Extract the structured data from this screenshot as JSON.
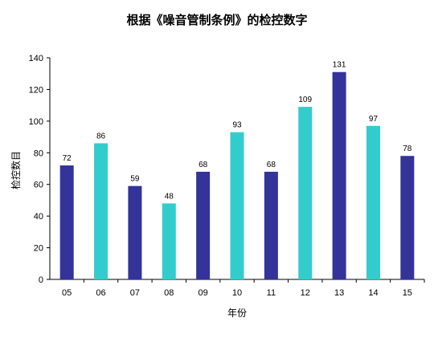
{
  "chart_data": {
    "type": "bar",
    "title": "根据《噪音管制条例》的检控数字",
    "xlabel": "年份",
    "ylabel": "检控数目",
    "categories": [
      "05",
      "06",
      "07",
      "08",
      "09",
      "10",
      "11",
      "12",
      "13",
      "14",
      "15"
    ],
    "values": [
      72,
      86,
      59,
      48,
      68,
      93,
      68,
      109,
      131,
      97,
      78
    ],
    "ylim": [
      0,
      140
    ],
    "yticks": [
      0,
      20,
      40,
      60,
      80,
      100,
      120,
      140
    ],
    "grid": false,
    "legend": "none",
    "bar_colors": [
      "#33339a",
      "#33cccc",
      "#33339a",
      "#33cccc",
      "#33339a",
      "#33cccc",
      "#33339a",
      "#33cccc",
      "#33339a",
      "#33cccc",
      "#33339a"
    ]
  }
}
